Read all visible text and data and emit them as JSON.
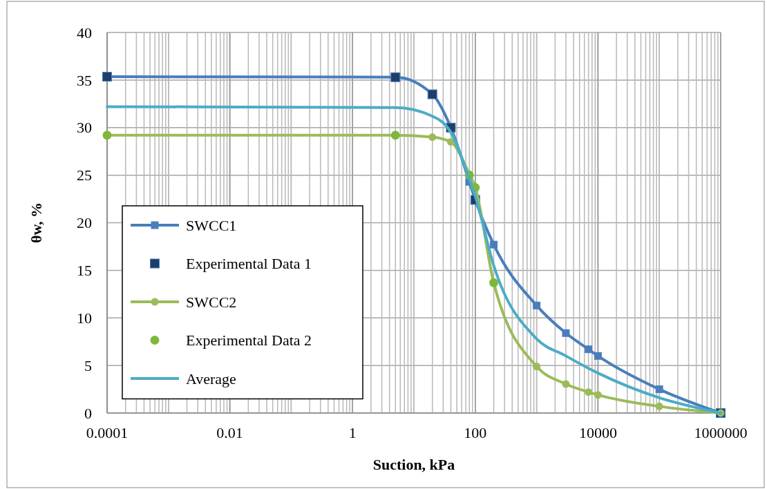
{
  "chart_data": {
    "type": "line",
    "xlabel": "Suction, kPa",
    "ylabel": "θw, %",
    "log": "x",
    "grid": true,
    "legend": "left",
    "xlim": [
      0.0001,
      1000000
    ],
    "xticks": [
      0.0001,
      0.01,
      1,
      100,
      10000,
      1000000
    ],
    "ylim": [
      0,
      40
    ],
    "yticks": [
      0,
      5,
      10,
      15,
      20,
      25,
      30,
      35,
      40
    ],
    "series": [
      {
        "name": "SWCC1",
        "marker": "square",
        "color": "#4a7ebb",
        "x": [
          0.0001,
          5,
          20,
          40,
          80,
          100,
          200,
          1000,
          3000,
          7000,
          10000,
          100000,
          1000000
        ],
        "values": [
          35.35,
          35.3,
          33.5,
          30.0,
          24.3,
          22.4,
          17.7,
          11.3,
          8.4,
          6.7,
          6.0,
          2.5,
          0
        ]
      },
      {
        "name": "Experimental Data 1",
        "type": "scatter",
        "marker": "square",
        "color": "#1f3d6b",
        "x": [
          0.0001,
          5,
          20,
          40,
          100,
          1000000
        ],
        "values": [
          35.35,
          35.3,
          33.5,
          30.0,
          22.4,
          0
        ]
      },
      {
        "name": "SWCC2",
        "marker": "circle",
        "color": "#9bbb59",
        "x": [
          0.0001,
          5,
          20,
          40,
          80,
          100,
          200,
          1000,
          3000,
          7000,
          10000,
          100000,
          1000000
        ],
        "values": [
          29.2,
          29.2,
          29.0,
          28.5,
          25.1,
          23.7,
          13.7,
          4.9,
          3.05,
          2.2,
          1.9,
          0.7,
          0
        ]
      },
      {
        "name": "Experimental Data 2",
        "type": "scatter",
        "marker": "circle",
        "color": "#7fb73a",
        "x": [
          0.0001,
          5,
          80,
          100,
          200
        ],
        "values": [
          29.2,
          29.2,
          25.0,
          23.7,
          13.7
        ]
      },
      {
        "name": "Average",
        "marker": "none",
        "color": "#4bacc6",
        "x": [
          0.0001,
          5,
          20,
          40,
          80,
          100,
          200,
          1000,
          3000,
          7000,
          10000,
          100000,
          1000000
        ],
        "values": [
          32.2,
          32.1,
          31.2,
          29.5,
          24.6,
          22.8,
          15.5,
          7.8,
          6.0,
          4.7,
          4.2,
          1.6,
          0
        ]
      }
    ]
  }
}
